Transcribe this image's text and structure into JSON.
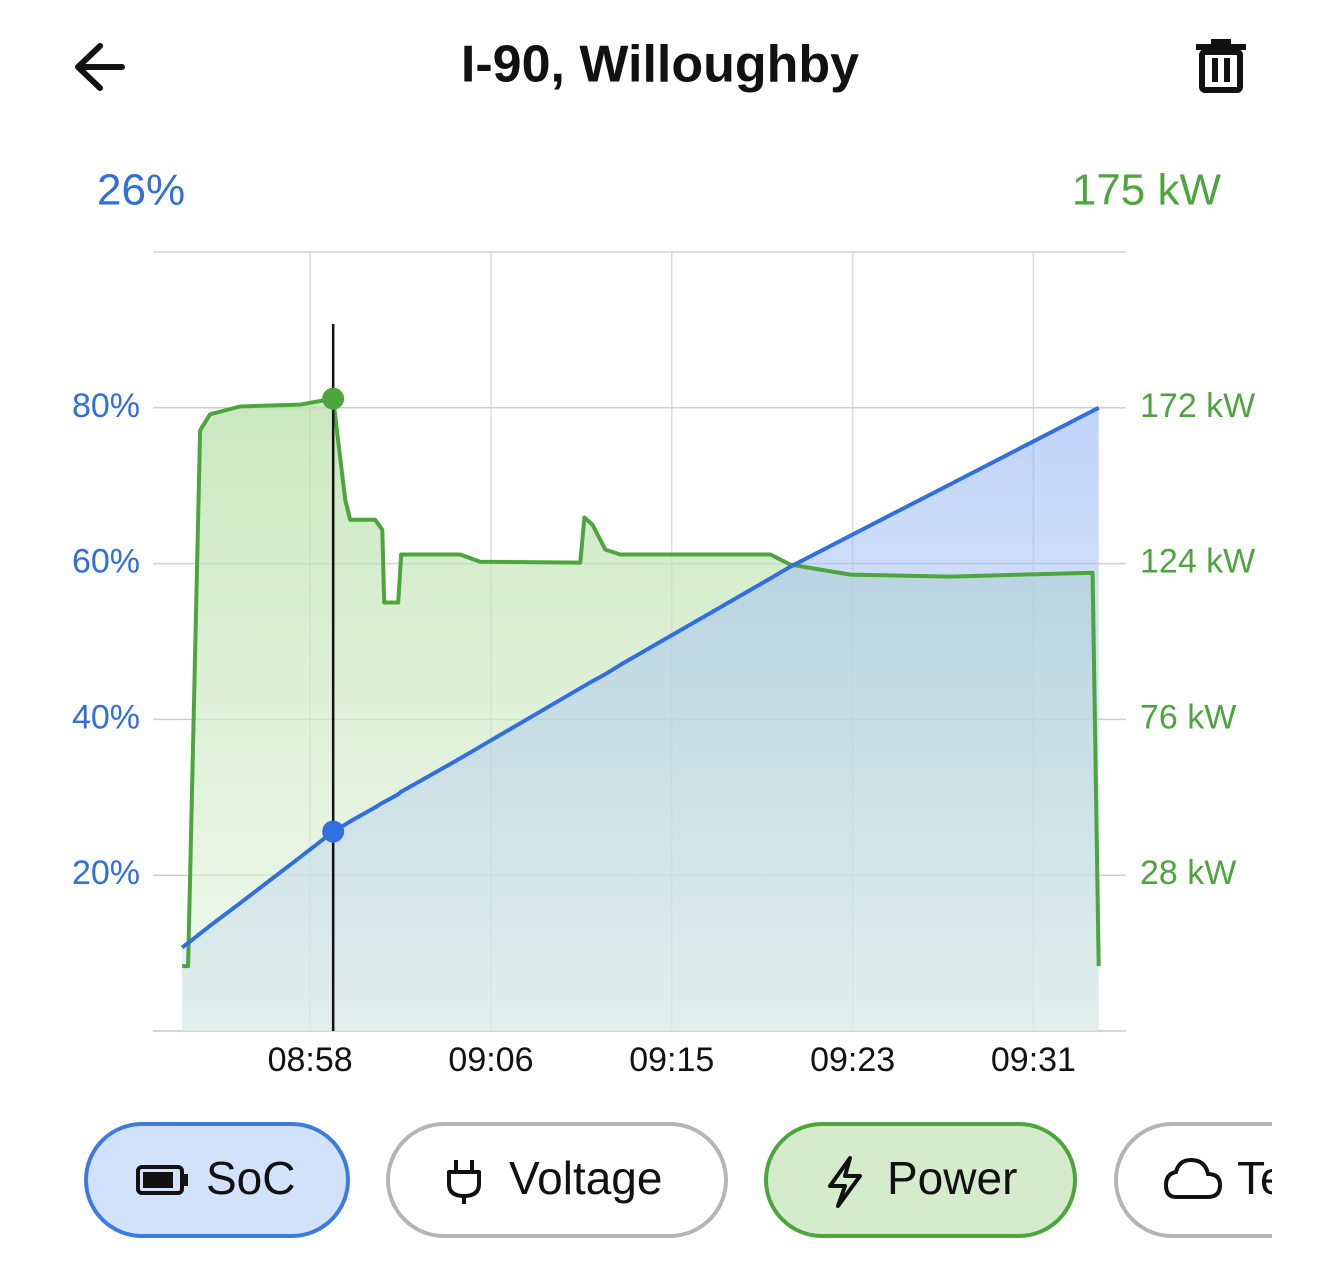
{
  "header": {
    "title": "I-90, Willoughby"
  },
  "readout": {
    "soc": "26%",
    "power": "175 kW"
  },
  "chart_data": {
    "type": "line",
    "x": [
      532.35,
      532.63,
      533.19,
      533.65,
      535.04,
      537.83,
      539.37,
      539.6,
      539.93,
      540.16,
      541.32,
      541.65,
      541.74,
      542.39,
      542.53,
      545.27,
      546.2,
      550.85,
      551.04,
      551.41,
      552.01,
      552.71,
      559.68,
      560.61,
      563.4,
      568.05,
      574.65,
      574.93
    ],
    "xlim": [
      531,
      576.2
    ],
    "xticks": [
      {
        "value": 538.3,
        "label": "08:58"
      },
      {
        "value": 546.7,
        "label": "09:06"
      },
      {
        "value": 555.1,
        "label": "09:15"
      },
      {
        "value": 563.5,
        "label": "09:23"
      },
      {
        "value": 571.9,
        "label": "09:31"
      }
    ],
    "ylim": [
      0,
      100
    ],
    "yticks": [
      {
        "value": 20,
        "label": "20%"
      },
      {
        "value": 40,
        "label": "40%"
      },
      {
        "value": 60,
        "label": "60%"
      },
      {
        "value": 80,
        "label": "80%"
      }
    ],
    "y2lim": [
      -20,
      220
    ],
    "y2ticks": [
      {
        "value": 28,
        "label": "28 kW"
      },
      {
        "value": 76,
        "label": "76 kW"
      },
      {
        "value": 124,
        "label": "124 kW"
      },
      {
        "value": 172,
        "label": "172 kW"
      }
    ],
    "grid": true,
    "series": [
      {
        "name": "SoC",
        "color": "#2f6fdf",
        "values": [
          10.7,
          11.3,
          12.5,
          13.5,
          16.4,
          22.3,
          25.6,
          26.0,
          26.5,
          26.9,
          28.7,
          29.3,
          29.4,
          30.4,
          30.7,
          35.0,
          36.5,
          44.0,
          44.3,
          44.9,
          45.8,
          47.0,
          58.1,
          59.6,
          63.6,
          70.2,
          79.6,
          80.0
        ]
      },
      {
        "name": "Power",
        "color": "#4ca63c",
        "axis": "y2",
        "values": [
          0,
          0,
          165,
          170,
          172.4,
          173,
          174.8,
          162,
          143.7,
          137.5,
          137.5,
          134.4,
          112,
          112,
          126.8,
          126.8,
          124.6,
          124.3,
          138.2,
          136,
          128.3,
          126.8,
          126.8,
          123.7,
          120.6,
          120,
          121.2,
          0
        ]
      }
    ]
  },
  "chips": {
    "voltage": "Voltage",
    "temperature": "Te"
  }
}
